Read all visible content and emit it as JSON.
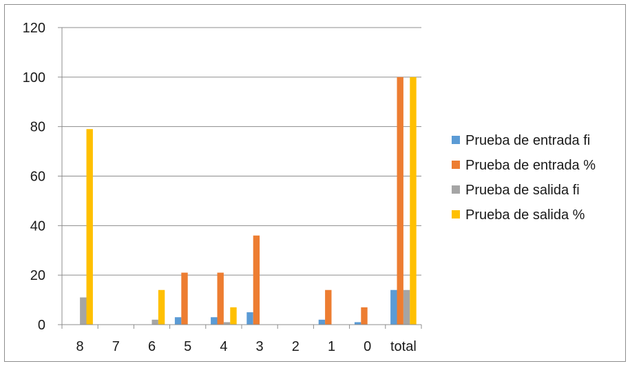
{
  "chart_data": {
    "type": "bar",
    "title": "",
    "xlabel": "",
    "ylabel": "",
    "categories": [
      "8",
      "7",
      "6",
      "5",
      "4",
      "3",
      "2",
      "1",
      "0",
      "total"
    ],
    "ylim": [
      0,
      120
    ],
    "yticks": [
      0,
      20,
      40,
      60,
      80,
      100,
      120
    ],
    "grid": true,
    "legend_position": "right",
    "series": [
      {
        "name": "Prueba de entrada fi",
        "color": "#5b9bd5",
        "values": [
          0,
          0,
          0,
          3,
          3,
          5,
          0,
          2,
          1,
          14
        ]
      },
      {
        "name": "Prueba de entrada %",
        "color": "#ed7d31",
        "values": [
          0,
          0,
          0,
          21,
          21,
          36,
          0,
          14,
          7,
          100
        ]
      },
      {
        "name": "Prueba de salida fi",
        "color": "#a5a5a5",
        "values": [
          11,
          0,
          2,
          0,
          1,
          0,
          0,
          0,
          0,
          14
        ]
      },
      {
        "name": "Prueba de salida %",
        "color": "#ffc000",
        "values": [
          79,
          0,
          14,
          0,
          7,
          0,
          0,
          0,
          0,
          100
        ]
      }
    ]
  }
}
